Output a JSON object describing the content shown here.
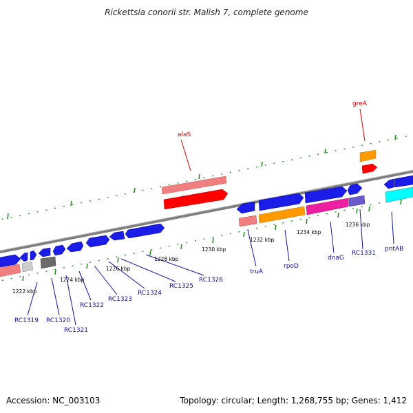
{
  "title": "Rickettsia conorii str. Malish 7, complete genome",
  "footer": {
    "accession": "Accession: NC_003103",
    "summary": "Topology: circular; Length: 1,268,755 bp; Genes: 1,412"
  },
  "colors": {
    "backbone": "#7f7f7f",
    "tick": "#2a8a2a",
    "forward_cds": "#0000ee",
    "label_top": "#d40000",
    "label_bottom": "#1010a0"
  },
  "ticks": [
    {
      "label": "1222 kbp"
    },
    {
      "label": "1224 kbp"
    },
    {
      "label": "1226 kbp"
    },
    {
      "label": "1228 kbp"
    },
    {
      "label": "1230 kbp"
    },
    {
      "label": "1232 kbp"
    },
    {
      "label": "1234 kbp"
    },
    {
      "label": "1236 kbp"
    }
  ],
  "top_labels": [
    {
      "text": "alaS"
    },
    {
      "text": "greA"
    }
  ],
  "bottom_labels": [
    {
      "text": "RC1319"
    },
    {
      "text": "RC1320"
    },
    {
      "text": "RC1321"
    },
    {
      "text": "RC1322"
    },
    {
      "text": "RC1323"
    },
    {
      "text": "RC1324"
    },
    {
      "text": "RC1325"
    },
    {
      "text": "RC1326"
    },
    {
      "text": "truA"
    },
    {
      "text": "rpoD"
    },
    {
      "text": "dnaG"
    },
    {
      "text": "RC1331"
    },
    {
      "text": "pntAB"
    }
  ]
}
